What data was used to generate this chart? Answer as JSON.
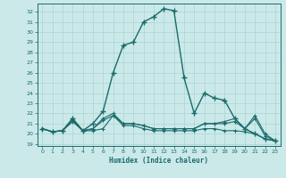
{
  "xlabel": "Humidex (Indice chaleur)",
  "bg_color": "#cce9e9",
  "grid_color": "#aad4d4",
  "line_color": "#1a6b6b",
  "xlim": [
    -0.5,
    23.5
  ],
  "ylim": [
    18.8,
    32.8
  ],
  "x_ticks": [
    0,
    1,
    2,
    3,
    4,
    5,
    6,
    7,
    8,
    9,
    10,
    11,
    12,
    13,
    14,
    15,
    16,
    17,
    18,
    19,
    20,
    21,
    22,
    23
  ],
  "y_ticks": [
    19,
    20,
    21,
    22,
    23,
    24,
    25,
    26,
    27,
    28,
    29,
    30,
    31,
    32
  ],
  "series": [
    {
      "x": [
        0,
        1,
        2,
        3,
        4,
        5,
        6,
        7,
        8,
        9,
        10,
        11,
        12,
        13,
        14,
        15,
        16,
        17,
        18,
        19,
        20,
        21,
        22,
        23
      ],
      "y": [
        20.5,
        20.2,
        20.3,
        21.5,
        20.3,
        21.0,
        22.2,
        26.0,
        28.7,
        29.0,
        31.0,
        31.5,
        32.3,
        32.1,
        25.5,
        22.0,
        24.0,
        23.5,
        23.3,
        21.5,
        20.5,
        20.0,
        19.5,
        19.3
      ],
      "lw": 1.0,
      "ms": 4.5
    },
    {
      "x": [
        0,
        1,
        2,
        3,
        4,
        5,
        6,
        7,
        8,
        9,
        10,
        11,
        12,
        13,
        14,
        15,
        16,
        17,
        18,
        19,
        20,
        21,
        22,
        23
      ],
      "y": [
        20.5,
        20.2,
        20.3,
        21.2,
        20.3,
        20.3,
        20.5,
        21.8,
        20.8,
        20.8,
        20.5,
        20.3,
        20.3,
        20.3,
        20.3,
        20.3,
        20.5,
        20.5,
        20.3,
        20.3,
        20.2,
        20.0,
        19.5,
        19.3
      ],
      "lw": 0.8,
      "ms": 3.5
    },
    {
      "x": [
        0,
        1,
        2,
        3,
        4,
        5,
        6,
        7,
        8,
        9,
        10,
        11,
        12,
        13,
        14,
        15,
        16,
        17,
        18,
        19,
        20,
        21,
        22,
        23
      ],
      "y": [
        20.5,
        20.2,
        20.3,
        21.5,
        20.3,
        20.5,
        21.5,
        22.0,
        21.0,
        21.0,
        20.8,
        20.5,
        20.5,
        20.5,
        20.5,
        20.5,
        21.0,
        21.0,
        21.2,
        21.5,
        20.5,
        21.8,
        20.0,
        19.3
      ],
      "lw": 0.8,
      "ms": 3.5
    },
    {
      "x": [
        0,
        1,
        2,
        3,
        4,
        5,
        6,
        7,
        8,
        9,
        10,
        11,
        12,
        13,
        14,
        15,
        16,
        17,
        18,
        19,
        20,
        21,
        22,
        23
      ],
      "y": [
        20.5,
        20.2,
        20.3,
        21.3,
        20.3,
        20.5,
        21.3,
        21.8,
        21.0,
        21.0,
        20.8,
        20.5,
        20.5,
        20.5,
        20.5,
        20.5,
        21.0,
        21.0,
        21.0,
        21.2,
        20.5,
        21.5,
        19.8,
        19.3
      ],
      "lw": 0.8,
      "ms": 3.5
    }
  ]
}
